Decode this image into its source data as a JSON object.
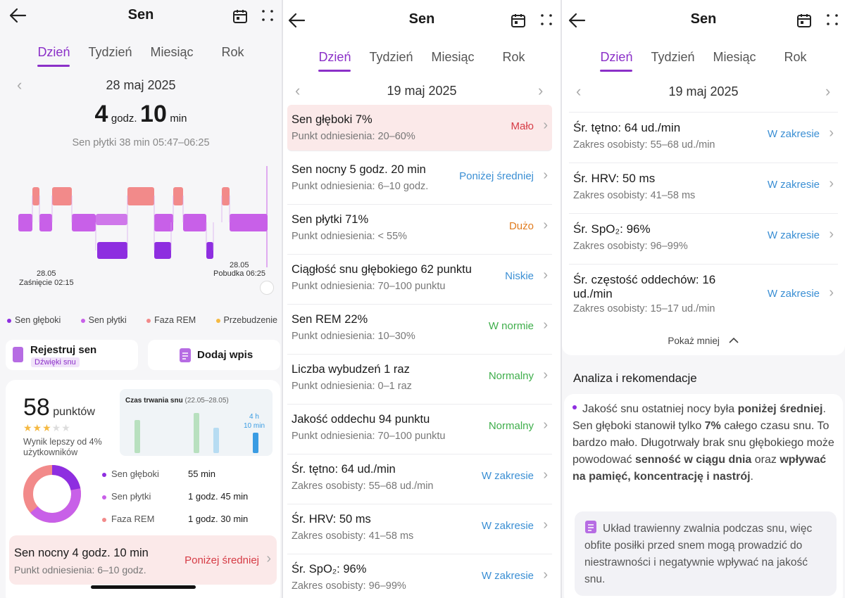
{
  "p1": {
    "title": "Sen",
    "tabs": [
      "Dzień",
      "Tydzień",
      "Miesiąc",
      "Rok"
    ],
    "date": "28 maj 2025",
    "dur_h": "4",
    "dur_h_unit": "godz.",
    "dur_m": "10",
    "dur_m_unit": "min",
    "stage_info": "Sen płytki 38 min 05:47–06:25",
    "asleep_date": "28.05",
    "asleep_label": "Zaśnięcie 02:15",
    "wake_date": "28.05",
    "wake_label": "Pobudka 06:25",
    "legend": [
      "Sen głęboki",
      "Sen płytki",
      "Faza REM",
      "Przebudzenie"
    ],
    "record_btn": "Rejestruj sen",
    "record_sub": "Dźwięki snu",
    "add_entry_btn": "Dodaj wpis",
    "score": "58",
    "score_unit": "punktów",
    "stars": 3,
    "score_desc": "Wynik lepszy od 4% użytkowników",
    "mini_title": "Czas trwania snu",
    "mini_range": "(22.05–28.05)",
    "mini_val1": "4 h",
    "mini_val2": "10 min",
    "breakdown": [
      {
        "label": "Sen głęboki",
        "value": "55 min"
      },
      {
        "label": "Sen płytki",
        "value": "1 godz. 45 min"
      },
      {
        "label": "Faza REM",
        "value": "1 godz. 30 min"
      }
    ],
    "night_title": "Sen nocny 4 godz. 10 min",
    "night_ref": "Punkt odniesienia: 6–10 godz.",
    "night_status": "Poniżej średniej"
  },
  "p2": {
    "title": "Sen",
    "tabs": [
      "Dzień",
      "Tydzień",
      "Miesiąc",
      "Rok"
    ],
    "date": "19 maj 2025",
    "rows": [
      {
        "title": "Sen głęboki 7%",
        "ref": "Punkt odniesienia: 20–60%",
        "status": "Mało"
      },
      {
        "title": "Sen nocny 5 godz. 20 min",
        "ref": "Punkt odniesienia: 6–10 godz.",
        "status": "Poniżej średniej"
      },
      {
        "title": "Sen płytki 71%",
        "ref": "Punkt odniesienia: < 55%",
        "status": "Dużo"
      },
      {
        "title": "Ciągłość snu głębokiego 62 punktu",
        "ref": "Punkt odniesienia: 70–100 punktu",
        "status": "Niskie"
      },
      {
        "title": "Sen REM 22%",
        "ref": "Punkt odniesienia: 10–30%",
        "status": "W normie"
      },
      {
        "title": "Liczba wybudzeń 1 raz",
        "ref": "Punkt odniesienia: 0–1 raz",
        "status": "Normalny"
      },
      {
        "title": "Jakość oddechu 94 punktu",
        "ref": "Punkt odniesienia: 70–100 punktu",
        "status": "Normalny"
      },
      {
        "title": "Śr. tętno: 64 ud./min",
        "ref": "Zakres osobisty: 55–68 ud./min",
        "status": "W zakresie"
      },
      {
        "title": "Śr. HRV: 50 ms",
        "ref": "Zakres osobisty: 41–58 ms",
        "status": "W zakresie"
      },
      {
        "title": "Śr. SpO₂: 96%",
        "ref": "Zakres osobisty: 96–99%",
        "status": "W zakresie"
      }
    ]
  },
  "p3": {
    "title": "Sen",
    "tabs": [
      "Dzień",
      "Tydzień",
      "Miesiąc",
      "Rok"
    ],
    "date": "19 maj 2025",
    "rows": [
      {
        "title": "Śr. tętno: 64 ud./min",
        "ref": "Zakres osobisty: 55–68 ud./min",
        "status": "W zakresie"
      },
      {
        "title": "Śr. HRV: 50 ms",
        "ref": "Zakres osobisty: 41–58 ms",
        "status": "W zakresie"
      },
      {
        "title": "Śr. SpO₂: 96%",
        "ref": "Zakres osobisty: 96–99%",
        "status": "W zakresie"
      },
      {
        "title": "Śr. częstość oddechów: 16 ud./min",
        "ref": "Zakres osobisty: 15–17 ud./min",
        "status": "W zakresie"
      }
    ],
    "show_less": "Pokaż mniej",
    "analysis_title": "Analiza i rekomendacje",
    "analysis_parts": {
      "a": "Jakość snu ostatniej nocy była ",
      "b": "poniżej średniej",
      "c": ". Sen głęboki stanowił tylko ",
      "d": "7%",
      "e": " całego czasu snu. To bardzo mało. Długotrwały brak snu głębokiego może powodować ",
      "f": "senność w ciągu dnia",
      "g": " oraz ",
      "h": "wpływać na pamięć, koncentrację i nastrój",
      "i": "."
    },
    "tip": "Układ trawienny zwalnia podczas snu, więc obfite posiłki przed snem mogą prowadzić do niestrawności i negatywnie wpływać na jakość snu."
  },
  "colors": {
    "accent": "#8b30c8",
    "deep": "#8e2ee0",
    "light": "#c860e8",
    "rem": "#f28a8a",
    "awake": "#f5b942",
    "green": "#3fae4b",
    "blue": "#3b8fd4",
    "orange": "#e07b1e",
    "red": "#d63b45"
  }
}
